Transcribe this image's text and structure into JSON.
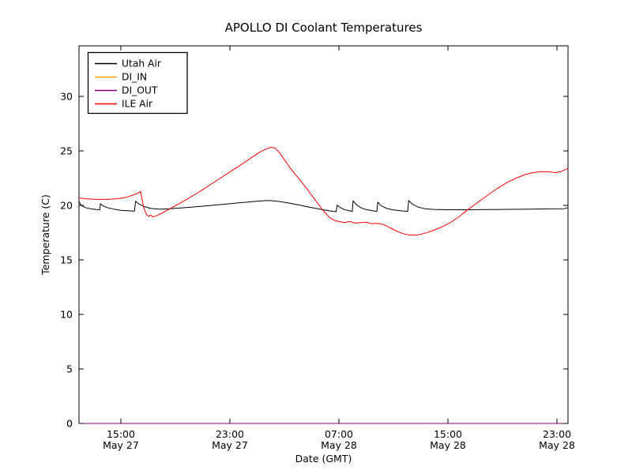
{
  "chart_data": {
    "type": "line",
    "title": "APOLLO DI Coolant Temperatures",
    "xlabel": "Date (GMT)",
    "ylabel": "Temperature (C)",
    "x_unit": "hours since May 27 00:00 GMT",
    "xlim": [
      11.93,
      47.81
    ],
    "ylim": [
      0,
      34.64
    ],
    "grid": false,
    "legend_position": "upper-left",
    "frame_color": "#000000",
    "background_color": "#ffffff",
    "x_ticks": [
      {
        "value": 15,
        "time": "15:00",
        "date": "May 27"
      },
      {
        "value": 23,
        "time": "23:00",
        "date": "May 27"
      },
      {
        "value": 31,
        "time": "07:00",
        "date": "May 28"
      },
      {
        "value": 39,
        "time": "15:00",
        "date": "May 28"
      },
      {
        "value": 47,
        "time": "23:00",
        "date": "May 28"
      }
    ],
    "y_ticks": [
      0,
      5,
      10,
      15,
      20,
      25,
      30
    ],
    "series": [
      {
        "name": "Utah Air",
        "color": "#000000",
        "points": [
          [
            11.93,
            20.35
          ],
          [
            12.1,
            20.0
          ],
          [
            12.4,
            19.8
          ],
          [
            12.8,
            19.68
          ],
          [
            13.2,
            19.62
          ],
          [
            13.45,
            19.6
          ],
          [
            13.5,
            20.15
          ],
          [
            13.7,
            19.95
          ],
          [
            14.0,
            19.8
          ],
          [
            14.5,
            19.65
          ],
          [
            15.0,
            19.55
          ],
          [
            15.6,
            19.5
          ],
          [
            16.0,
            19.47
          ],
          [
            16.08,
            20.38
          ],
          [
            16.3,
            20.15
          ],
          [
            16.7,
            19.9
          ],
          [
            17.2,
            19.72
          ],
          [
            17.8,
            19.65
          ],
          [
            18.5,
            19.68
          ],
          [
            19.5,
            19.78
          ],
          [
            20.5,
            19.88
          ],
          [
            21.5,
            19.98
          ],
          [
            22.5,
            20.1
          ],
          [
            23.5,
            20.22
          ],
          [
            24.5,
            20.33
          ],
          [
            25.3,
            20.42
          ],
          [
            25.9,
            20.45
          ],
          [
            26.5,
            20.38
          ],
          [
            27.2,
            20.25
          ],
          [
            28.0,
            20.05
          ],
          [
            28.8,
            19.85
          ],
          [
            29.6,
            19.65
          ],
          [
            30.3,
            19.5
          ],
          [
            30.8,
            19.42
          ],
          [
            30.88,
            20.02
          ],
          [
            31.1,
            19.8
          ],
          [
            31.4,
            19.62
          ],
          [
            31.8,
            19.5
          ],
          [
            31.98,
            19.45
          ],
          [
            32.04,
            20.42
          ],
          [
            32.3,
            20.05
          ],
          [
            32.6,
            19.8
          ],
          [
            33.0,
            19.62
          ],
          [
            33.5,
            19.5
          ],
          [
            33.78,
            19.45
          ],
          [
            33.85,
            20.3
          ],
          [
            34.1,
            19.98
          ],
          [
            34.5,
            19.72
          ],
          [
            35.0,
            19.58
          ],
          [
            35.6,
            19.5
          ],
          [
            36.05,
            19.45
          ],
          [
            36.12,
            20.45
          ],
          [
            36.4,
            20.1
          ],
          [
            36.8,
            19.85
          ],
          [
            37.3,
            19.7
          ],
          [
            38.0,
            19.63
          ],
          [
            39.0,
            19.6
          ],
          [
            40.5,
            19.6
          ],
          [
            42.0,
            19.62
          ],
          [
            43.5,
            19.64
          ],
          [
            45.0,
            19.66
          ],
          [
            46.5,
            19.68
          ],
          [
            47.5,
            19.7
          ],
          [
            47.81,
            19.8
          ]
        ]
      },
      {
        "name": "DI_IN",
        "color": "#ffa500",
        "points": [
          [
            11.93,
            0
          ],
          [
            47.81,
            0
          ]
        ]
      },
      {
        "name": "DI_OUT",
        "color": "#800080",
        "points": [
          [
            11.93,
            0
          ],
          [
            47.81,
            0
          ]
        ]
      },
      {
        "name": "ILE Air",
        "color": "#ff0000",
        "points": [
          [
            11.93,
            20.68
          ],
          [
            12.5,
            20.6
          ],
          [
            13.2,
            20.55
          ],
          [
            14.0,
            20.55
          ],
          [
            14.8,
            20.62
          ],
          [
            15.4,
            20.75
          ],
          [
            15.9,
            20.95
          ],
          [
            16.3,
            21.15
          ],
          [
            16.45,
            21.28
          ],
          [
            16.52,
            20.8
          ],
          [
            16.7,
            19.7
          ],
          [
            16.9,
            19.15
          ],
          [
            17.05,
            18.98
          ],
          [
            17.2,
            19.12
          ],
          [
            17.35,
            18.95
          ],
          [
            17.5,
            19.0
          ],
          [
            17.7,
            19.1
          ],
          [
            18.1,
            19.35
          ],
          [
            18.6,
            19.7
          ],
          [
            19.2,
            20.1
          ],
          [
            19.9,
            20.6
          ],
          [
            20.7,
            21.2
          ],
          [
            21.5,
            21.85
          ],
          [
            22.3,
            22.5
          ],
          [
            23.1,
            23.15
          ],
          [
            23.9,
            23.8
          ],
          [
            24.6,
            24.4
          ],
          [
            25.2,
            24.9
          ],
          [
            25.7,
            25.2
          ],
          [
            26.0,
            25.33
          ],
          [
            26.3,
            25.28
          ],
          [
            26.6,
            24.9
          ],
          [
            27.0,
            24.2
          ],
          [
            27.5,
            23.3
          ],
          [
            28.0,
            22.55
          ],
          [
            28.6,
            21.6
          ],
          [
            29.2,
            20.6
          ],
          [
            29.8,
            19.6
          ],
          [
            30.3,
            18.9
          ],
          [
            30.7,
            18.6
          ],
          [
            31.1,
            18.5
          ],
          [
            31.4,
            18.42
          ],
          [
            31.8,
            18.52
          ],
          [
            32.2,
            18.38
          ],
          [
            32.6,
            18.42
          ],
          [
            33.0,
            18.45
          ],
          [
            33.4,
            18.32
          ],
          [
            33.8,
            18.35
          ],
          [
            34.2,
            18.28
          ],
          [
            34.6,
            18.05
          ],
          [
            35.1,
            17.72
          ],
          [
            35.6,
            17.45
          ],
          [
            36.1,
            17.3
          ],
          [
            36.5,
            17.26
          ],
          [
            36.9,
            17.32
          ],
          [
            37.4,
            17.48
          ],
          [
            38.0,
            17.75
          ],
          [
            38.6,
            18.05
          ],
          [
            39.2,
            18.45
          ],
          [
            39.8,
            18.95
          ],
          [
            40.4,
            19.55
          ],
          [
            41.0,
            20.1
          ],
          [
            41.6,
            20.65
          ],
          [
            42.2,
            21.2
          ],
          [
            42.8,
            21.7
          ],
          [
            43.4,
            22.15
          ],
          [
            44.0,
            22.5
          ],
          [
            44.6,
            22.8
          ],
          [
            45.2,
            23.0
          ],
          [
            45.8,
            23.1
          ],
          [
            46.4,
            23.08
          ],
          [
            46.9,
            23.0
          ],
          [
            47.3,
            23.1
          ],
          [
            47.81,
            23.4
          ]
        ]
      }
    ]
  }
}
